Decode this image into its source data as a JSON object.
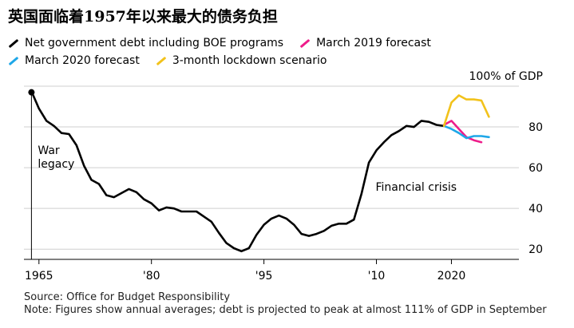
{
  "title": "英国面临着1957年以来最大的债务负担",
  "legend_rows": [
    [
      {
        "label": "Net government debt including BOE programs",
        "color": "#000000"
      },
      {
        "label": "March 2019 forecast",
        "color": "#ee1c8a"
      }
    ],
    [
      {
        "label": "March 2020 forecast",
        "color": "#1ea7e8"
      },
      {
        "label": "3-month lockdown scenario",
        "color": "#f2c21b"
      }
    ]
  ],
  "footer": {
    "source": "Source: Office for Budget Responsibility",
    "note": "Note: Figures show annual averages; debt is projected to peak at almost 111% of GDP in September"
  },
  "chart_data": {
    "type": "line",
    "ylabel": "100% of GDP",
    "ylim": [
      15,
      100
    ],
    "xlim": [
      1963,
      2029
    ],
    "y_ticks": [
      20,
      40,
      60,
      80
    ],
    "x_ticks": [
      {
        "x": 1965,
        "label": "1965"
      },
      {
        "x": 1980,
        "label": "'80"
      },
      {
        "x": 1995,
        "label": "'95"
      },
      {
        "x": 2010,
        "label": "'10"
      },
      {
        "x": 2020,
        "label": "2020"
      }
    ],
    "grid": true,
    "annotations": [
      {
        "text": "War legacy",
        "lines": [
          "War",
          "legacy"
        ],
        "x": 1964,
        "y": 97
      },
      {
        "text": "Financial crisis",
        "x": 2010,
        "y": 34
      }
    ],
    "series": [
      {
        "name": "Net government debt including BOE programs",
        "color": "#000000",
        "x": [
          1964,
          1965,
          1966,
          1967,
          1968,
          1969,
          1970,
          1971,
          1972,
          1973,
          1974,
          1975,
          1976,
          1977,
          1978,
          1979,
          1980,
          1981,
          1982,
          1983,
          1984,
          1985,
          1986,
          1987,
          1988,
          1989,
          1990,
          1991,
          1992,
          1993,
          1994,
          1995,
          1996,
          1997,
          1998,
          1999,
          2000,
          2001,
          2002,
          2003,
          2004,
          2005,
          2006,
          2007,
          2008,
          2009,
          2010,
          2011,
          2012,
          2013,
          2014,
          2015,
          2016,
          2017,
          2018,
          2019
        ],
        "values": [
          97.5,
          89,
          83,
          80.5,
          77,
          76.5,
          71,
          61,
          54,
          52,
          46.5,
          45.5,
          47.5,
          49.5,
          48,
          44.5,
          42.5,
          39,
          40.5,
          40,
          38.5,
          38.5,
          38.5,
          36,
          33.5,
          28,
          23,
          20.5,
          19,
          20.5,
          27,
          32,
          35,
          36.5,
          35,
          32,
          27.5,
          26.5,
          27.5,
          29,
          31.5,
          32.5,
          32.5,
          34.5,
          47,
          62.5,
          68.5,
          72.5,
          76,
          78,
          80.5,
          80,
          83,
          82.5,
          81,
          80.5
        ]
      },
      {
        "name": "March 2019 forecast",
        "color": "#ee1c8a",
        "x": [
          2019,
          2020,
          2021,
          2022,
          2023,
          2024
        ],
        "values": [
          81,
          83,
          79,
          75,
          73.5,
          72.5
        ]
      },
      {
        "name": "March 2020 forecast",
        "color": "#1ea7e8",
        "x": [
          2019,
          2020,
          2021,
          2022,
          2023,
          2024,
          2025
        ],
        "values": [
          80.5,
          79,
          77,
          74.5,
          75.5,
          75.5,
          75
        ]
      },
      {
        "name": "3-month lockdown scenario",
        "color": "#f2c21b",
        "x": [
          2019,
          2020,
          2021,
          2022,
          2023,
          2024,
          2025
        ],
        "values": [
          80.5,
          92,
          95.5,
          93.5,
          93.5,
          93,
          85
        ]
      }
    ]
  }
}
